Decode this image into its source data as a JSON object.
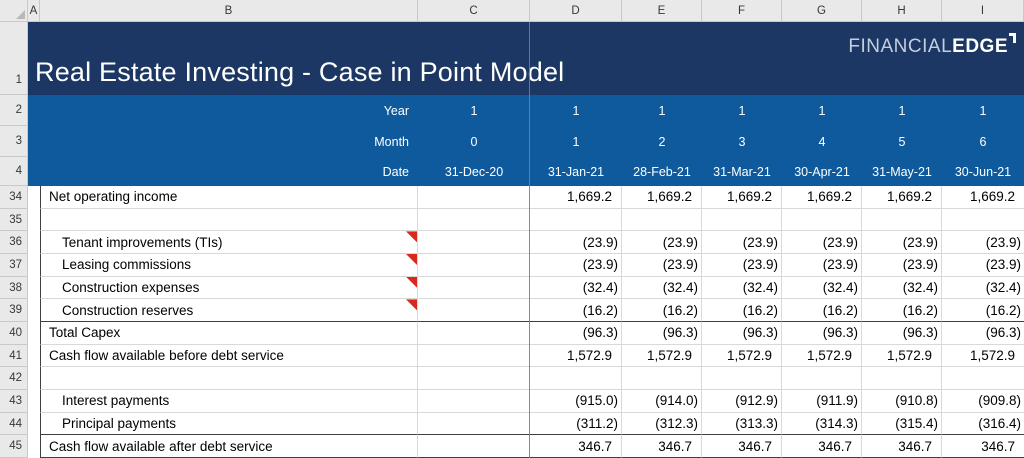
{
  "title": "Real Estate Investing - Case in Point Model",
  "logo": {
    "part1": "FINANCIAL",
    "part2": "EDGE"
  },
  "colors": {
    "navy": "#1c3763",
    "blue": "#0f5a9d",
    "comment_red": "#d8291c",
    "gridline": "#d9d9d9",
    "dark_border": "#3f3f3f"
  },
  "sheet": {
    "title_row_num": "1",
    "column_letters": [
      "A",
      "B",
      "C",
      "D",
      "E",
      "F",
      "G",
      "H",
      "I"
    ],
    "period_rows": [
      {
        "row_num": "2",
        "label": "Year",
        "first": "1",
        "values": [
          "1",
          "1",
          "1",
          "1",
          "1",
          "1"
        ]
      },
      {
        "row_num": "3",
        "label": "Month",
        "first": "0",
        "values": [
          "1",
          "2",
          "3",
          "4",
          "5",
          "6"
        ]
      },
      {
        "row_num": "4",
        "label": "Date",
        "first": "31-Dec-20",
        "values": [
          "31-Jan-21",
          "28-Feb-21",
          "31-Mar-21",
          "30-Apr-21",
          "31-May-21",
          "30-Jun-21"
        ]
      }
    ],
    "data_rows": [
      {
        "row_num": "34",
        "label": "Net operating income",
        "indent": false,
        "comment": false,
        "top_border": false,
        "bottom_border": false,
        "values": [
          "1,669.2",
          "1,669.2",
          "1,669.2",
          "1,669.2",
          "1,669.2",
          "1,669.2"
        ]
      },
      {
        "row_num": "35",
        "label": "",
        "indent": false,
        "comment": false,
        "top_border": false,
        "bottom_border": false,
        "values": [
          "",
          "",
          "",
          "",
          "",
          ""
        ]
      },
      {
        "row_num": "36",
        "label": "Tenant improvements (TIs)",
        "indent": true,
        "comment": true,
        "top_border": false,
        "bottom_border": false,
        "values": [
          "(23.9)",
          "(23.9)",
          "(23.9)",
          "(23.9)",
          "(23.9)",
          "(23.9)"
        ]
      },
      {
        "row_num": "37",
        "label": "Leasing commissions",
        "indent": true,
        "comment": true,
        "top_border": false,
        "bottom_border": false,
        "values": [
          "(23.9)",
          "(23.9)",
          "(23.9)",
          "(23.9)",
          "(23.9)",
          "(23.9)"
        ]
      },
      {
        "row_num": "38",
        "label": "Construction expenses",
        "indent": true,
        "comment": true,
        "top_border": false,
        "bottom_border": false,
        "values": [
          "(32.4)",
          "(32.4)",
          "(32.4)",
          "(32.4)",
          "(32.4)",
          "(32.4)"
        ]
      },
      {
        "row_num": "39",
        "label": "Construction reserves",
        "indent": true,
        "comment": true,
        "top_border": false,
        "bottom_border": false,
        "values": [
          "(16.2)",
          "(16.2)",
          "(16.2)",
          "(16.2)",
          "(16.2)",
          "(16.2)"
        ]
      },
      {
        "row_num": "40",
        "label": "Total Capex",
        "indent": false,
        "comment": false,
        "top_border": true,
        "bottom_border": false,
        "values": [
          "(96.3)",
          "(96.3)",
          "(96.3)",
          "(96.3)",
          "(96.3)",
          "(96.3)"
        ]
      },
      {
        "row_num": "41",
        "label": "Cash flow available before debt service",
        "indent": false,
        "comment": false,
        "top_border": false,
        "bottom_border": false,
        "values": [
          "1,572.9",
          "1,572.9",
          "1,572.9",
          "1,572.9",
          "1,572.9",
          "1,572.9"
        ]
      },
      {
        "row_num": "42",
        "label": "",
        "indent": false,
        "comment": false,
        "top_border": false,
        "bottom_border": false,
        "values": [
          "",
          "",
          "",
          "",
          "",
          ""
        ]
      },
      {
        "row_num": "43",
        "label": "Interest payments",
        "indent": true,
        "comment": false,
        "top_border": false,
        "bottom_border": false,
        "values": [
          "(915.0)",
          "(914.0)",
          "(912.9)",
          "(911.9)",
          "(910.8)",
          "(909.8)"
        ]
      },
      {
        "row_num": "44",
        "label": "Principal payments",
        "indent": true,
        "comment": false,
        "top_border": false,
        "bottom_border": false,
        "values": [
          "(311.2)",
          "(312.3)",
          "(313.3)",
          "(314.3)",
          "(315.4)",
          "(316.4)"
        ]
      },
      {
        "row_num": "45",
        "label": "Cash flow available after debt service",
        "indent": false,
        "comment": false,
        "top_border": true,
        "bottom_border": true,
        "values": [
          "346.7",
          "346.7",
          "346.7",
          "346.7",
          "346.7",
          "346.7"
        ]
      }
    ]
  }
}
